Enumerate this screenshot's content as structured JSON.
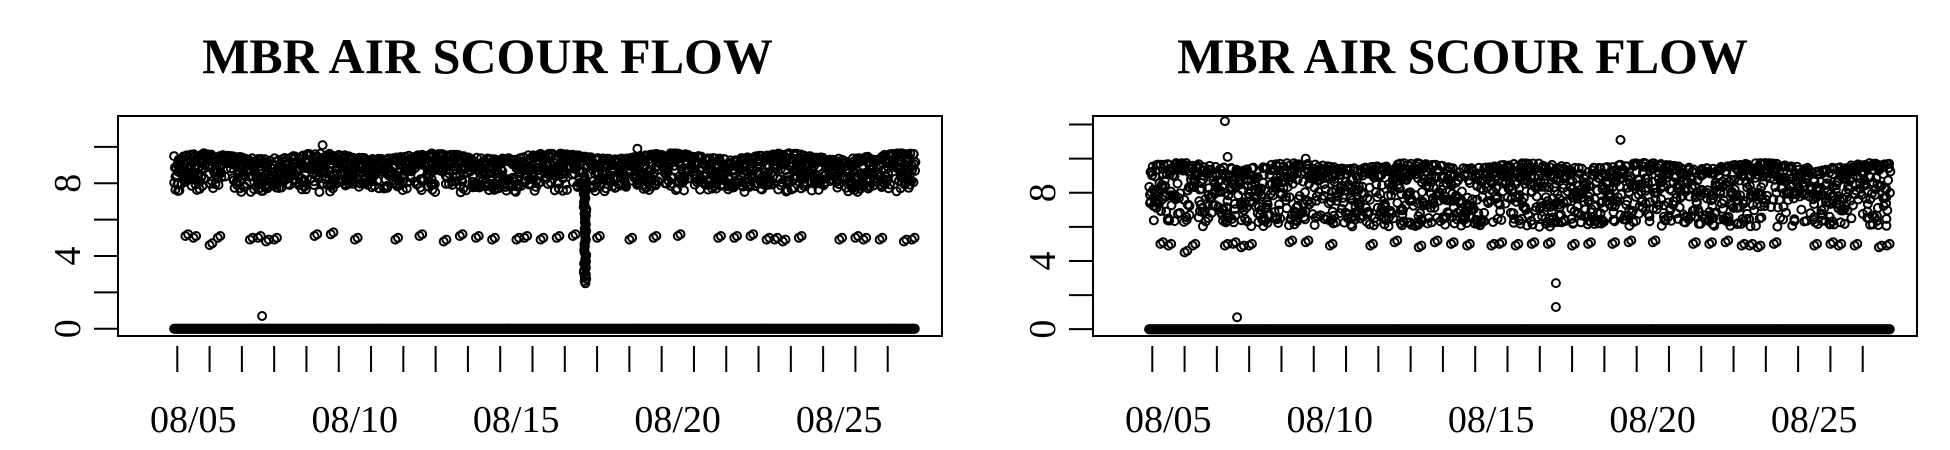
{
  "chart_data": [
    {
      "type": "scatter",
      "title": "MBR AIR SCOUR FLOW",
      "xlabel": "",
      "ylabel": "",
      "x_domain": [
        "2023-08-04",
        "2023-08-28"
      ],
      "xlim": [
        "2023-08-04",
        "2023-08-28"
      ],
      "ylim": [
        -0.4,
        11.7
      ],
      "y_ticks": [
        0,
        4,
        8
      ],
      "y_ticks_minor": [
        0,
        2,
        4,
        6,
        8,
        10
      ],
      "x_tick_labels": [
        "08/05",
        "08/10",
        "08/15",
        "08/20",
        "08/25"
      ],
      "x_tick_dates": [
        "2023-08-05",
        "2023-08-10",
        "2023-08-15",
        "2023-08-20",
        "2023-08-25"
      ],
      "x_ticks_minor_daily": true,
      "marker": "open-circle",
      "color": "#000000",
      "grid": false,
      "legend": "none",
      "description_of_series": {
        "baseline_level": 0,
        "upper_band_range": [
          8.0,
          9.7
        ],
        "mid_cluster_level": 5.0,
        "outliers": [
          {
            "date": "2023-08-07T15:00",
            "value": 0.7
          },
          {
            "date": "2023-08-09T12:00",
            "value": 10.1
          },
          {
            "date": "2023-08-19T06:00",
            "value": 9.9
          }
        ],
        "dip_event": {
          "date": "2023-08-17T15:00",
          "min_value": 2.5
        }
      },
      "mid_points": [
        [
          "2023-08-05T06:00",
          5.1
        ],
        [
          "2023-08-05T12:00",
          5.0
        ],
        [
          "2023-08-06T00:00",
          4.6
        ],
        [
          "2023-08-06T06:00",
          5.0
        ],
        [
          "2023-08-07T06:00",
          4.9
        ],
        [
          "2023-08-07T12:00",
          5.0
        ],
        [
          "2023-08-07T18:00",
          4.8
        ],
        [
          "2023-08-08T00:00",
          4.9
        ],
        [
          "2023-08-09T06:00",
          5.1
        ],
        [
          "2023-08-09T18:00",
          5.2
        ],
        [
          "2023-08-10T12:00",
          4.9
        ],
        [
          "2023-08-11T18:00",
          4.9
        ],
        [
          "2023-08-12T12:00",
          5.1
        ],
        [
          "2023-08-13T06:00",
          4.8
        ],
        [
          "2023-08-13T18:00",
          5.1
        ],
        [
          "2023-08-14T06:00",
          5.0
        ],
        [
          "2023-08-14T18:00",
          4.9
        ],
        [
          "2023-08-15T12:00",
          4.9
        ],
        [
          "2023-08-15T18:00",
          5.0
        ],
        [
          "2023-08-16T06:00",
          4.9
        ],
        [
          "2023-08-16T18:00",
          5.0
        ],
        [
          "2023-08-17T06:00",
          5.1
        ],
        [
          "2023-08-18T00:00",
          5.0
        ],
        [
          "2023-08-19T00:00",
          4.9
        ],
        [
          "2023-08-19T18:00",
          5.0
        ],
        [
          "2023-08-20T12:00",
          5.1
        ],
        [
          "2023-08-21T18:00",
          5.0
        ],
        [
          "2023-08-22T06:00",
          5.0
        ],
        [
          "2023-08-22T18:00",
          5.1
        ],
        [
          "2023-08-23T06:00",
          4.9
        ],
        [
          "2023-08-23T12:00",
          4.9
        ],
        [
          "2023-08-23T18:00",
          4.8
        ],
        [
          "2023-08-24T06:00",
          5.0
        ],
        [
          "2023-08-25T12:00",
          4.9
        ],
        [
          "2023-08-26T00:00",
          5.0
        ],
        [
          "2023-08-26T06:00",
          4.9
        ],
        [
          "2023-08-26T18:00",
          4.9
        ],
        [
          "2023-08-27T12:00",
          4.8
        ],
        [
          "2023-08-27T18:00",
          4.9
        ]
      ]
    },
    {
      "type": "scatter",
      "title": "MBR AIR SCOUR FLOW",
      "xlabel": "",
      "ylabel": "",
      "x_domain": [
        "2023-08-04",
        "2023-08-28"
      ],
      "xlim": [
        "2023-08-04",
        "2023-08-28"
      ],
      "ylim": [
        -0.4,
        12.5
      ],
      "y_ticks": [
        0,
        4,
        8
      ],
      "y_ticks_minor": [
        0,
        2,
        4,
        6,
        8,
        10,
        12
      ],
      "x_tick_labels": [
        "08/05",
        "08/10",
        "08/15",
        "08/20",
        "08/25"
      ],
      "x_tick_dates": [
        "2023-08-05",
        "2023-08-10",
        "2023-08-15",
        "2023-08-20",
        "2023-08-25"
      ],
      "x_ticks_minor_daily": true,
      "marker": "open-circle",
      "color": "#000000",
      "grid": false,
      "legend": "none",
      "description_of_series": {
        "baseline_level": 0,
        "upper_band_range": [
          6.5,
          9.8
        ],
        "mid_cluster_level": 5.0,
        "outliers": [
          {
            "date": "2023-08-07T06:00",
            "value": 12.2
          },
          {
            "date": "2023-08-07T08:00",
            "value": 10.1
          },
          {
            "date": "2023-08-07T15:00",
            "value": 0.7
          },
          {
            "date": "2023-08-17T12:00",
            "value": 2.7
          },
          {
            "date": "2023-08-17T12:00",
            "value": 1.3
          },
          {
            "date": "2023-08-19T12:00",
            "value": 11.1
          },
          {
            "date": "2023-08-09T18:00",
            "value": 10.0
          }
        ],
        "dip_event": null
      },
      "mid_points": [
        [
          "2023-08-05T06:00",
          5.0
        ],
        [
          "2023-08-05T12:00",
          4.9
        ],
        [
          "2023-08-06T00:00",
          4.5
        ],
        [
          "2023-08-06T06:00",
          4.9
        ],
        [
          "2023-08-07T06:00",
          4.9
        ],
        [
          "2023-08-07T12:00",
          5.0
        ],
        [
          "2023-08-07T18:00",
          4.8
        ],
        [
          "2023-08-08T00:00",
          4.9
        ],
        [
          "2023-08-09T06:00",
          5.1
        ],
        [
          "2023-08-09T18:00",
          5.1
        ],
        [
          "2023-08-10T12:00",
          4.9
        ],
        [
          "2023-08-11T18:00",
          4.9
        ],
        [
          "2023-08-12T12:00",
          5.1
        ],
        [
          "2023-08-13T06:00",
          4.8
        ],
        [
          "2023-08-13T18:00",
          5.1
        ],
        [
          "2023-08-14T06:00",
          5.0
        ],
        [
          "2023-08-14T18:00",
          4.9
        ],
        [
          "2023-08-15T12:00",
          4.9
        ],
        [
          "2023-08-15T18:00",
          5.0
        ],
        [
          "2023-08-16T06:00",
          4.9
        ],
        [
          "2023-08-16T18:00",
          5.0
        ],
        [
          "2023-08-17T06:00",
          5.0
        ],
        [
          "2023-08-18T00:00",
          4.9
        ],
        [
          "2023-08-18T12:00",
          5.0
        ],
        [
          "2023-08-19T06:00",
          5.0
        ],
        [
          "2023-08-19T18:00",
          5.1
        ],
        [
          "2023-08-20T12:00",
          5.1
        ],
        [
          "2023-08-21T18:00",
          5.0
        ],
        [
          "2023-08-22T06:00",
          5.0
        ],
        [
          "2023-08-22T18:00",
          5.1
        ],
        [
          "2023-08-23T06:00",
          4.9
        ],
        [
          "2023-08-23T12:00",
          4.9
        ],
        [
          "2023-08-23T18:00",
          4.8
        ],
        [
          "2023-08-24T06:00",
          5.0
        ],
        [
          "2023-08-25T12:00",
          4.9
        ],
        [
          "2023-08-26T00:00",
          5.0
        ],
        [
          "2023-08-26T06:00",
          4.9
        ],
        [
          "2023-08-26T18:00",
          4.9
        ],
        [
          "2023-08-27T12:00",
          4.8
        ],
        [
          "2023-08-27T18:00",
          4.9
        ]
      ]
    }
  ]
}
